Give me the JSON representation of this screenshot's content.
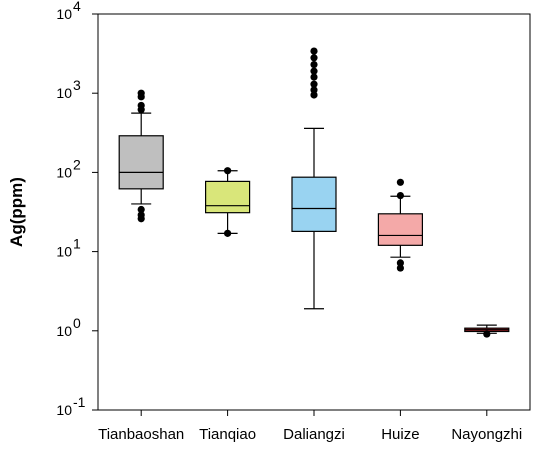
{
  "chart_data": {
    "type": "box",
    "ylabel": "Ag(ppm)",
    "y_scale": "log",
    "ylim": [
      0.1,
      10000
    ],
    "y_ticks": [
      {
        "value": 0.1,
        "base": "10",
        "exp": "-1"
      },
      {
        "value": 1,
        "base": "10",
        "exp": "0"
      },
      {
        "value": 10,
        "base": "10",
        "exp": "1"
      },
      {
        "value": 100,
        "base": "10",
        "exp": "2"
      },
      {
        "value": 1000,
        "base": "10",
        "exp": "3"
      },
      {
        "value": 10000,
        "base": "10",
        "exp": "4"
      }
    ],
    "categories": [
      "Tianbaoshan",
      "Tianqiao",
      "Daliangzi",
      "Huize",
      "Nayongzhi"
    ],
    "boxes": [
      {
        "name": "Tianbaoshan",
        "whisker_low": 40,
        "q1": 62,
        "median": 100,
        "q3": 290,
        "whisker_high": 560,
        "outliers": [
          26,
          29,
          34,
          620,
          700,
          900,
          1000
        ],
        "color": "#bfbfbf"
      },
      {
        "name": "Tianqiao",
        "whisker_low": 17,
        "q1": 31,
        "median": 38,
        "q3": 77,
        "whisker_high": 105,
        "outliers": [
          17,
          105
        ],
        "color": "#d9e67a"
      },
      {
        "name": "Daliangzi",
        "whisker_low": 1.9,
        "q1": 18,
        "median": 35,
        "q3": 87,
        "whisker_high": 360,
        "outliers": [
          950,
          1100,
          1300,
          1600,
          1900,
          2300,
          2800,
          3400
        ],
        "color": "#99d3f1"
      },
      {
        "name": "Huize",
        "whisker_low": 8.5,
        "q1": 12,
        "median": 16,
        "q3": 30,
        "whisker_high": 50,
        "outliers": [
          6.2,
          7.2,
          51,
          75
        ],
        "color": "#f4a9a8"
      },
      {
        "name": "Nayongzhi",
        "whisker_low": 0.93,
        "q1": 0.98,
        "median": 1.03,
        "q3": 1.08,
        "whisker_high": 1.18,
        "outliers": [
          0.91
        ],
        "color": "#c0272d"
      }
    ]
  }
}
